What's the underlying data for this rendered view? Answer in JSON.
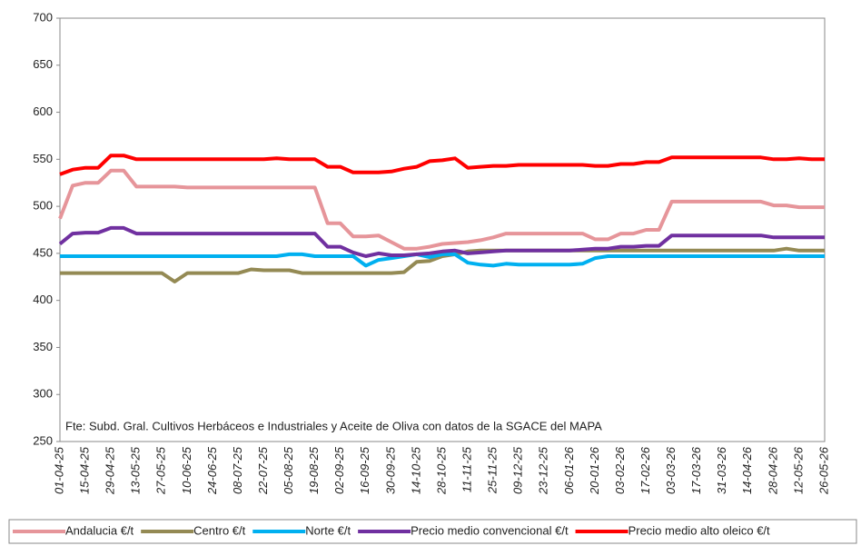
{
  "chart_data": {
    "type": "line",
    "categories": [
      "01-04-25",
      null,
      "15-04-25",
      null,
      "29-04-25",
      null,
      "13-05-25",
      null,
      "27-05-25",
      null,
      "10-06-25",
      null,
      "24-06-25",
      null,
      "08-07-25",
      null,
      "22-07-25",
      null,
      "05-08-25",
      null,
      "19-08-25",
      null,
      "02-09-25",
      null,
      "16-09-25",
      null,
      "30-09-25",
      null,
      "14-10-25",
      null,
      "28-10-25",
      null,
      "11-11-25",
      null,
      "25-11-25",
      null,
      "09-12-25",
      null,
      "23-12-25",
      null,
      "06-01-26",
      null,
      "20-01-26",
      null,
      "03-02-26",
      null,
      "17-02-26",
      null,
      "03-03-26",
      null,
      "17-03-26",
      null,
      "31-03-26",
      null,
      "14-04-26",
      null,
      "28-04-26",
      null,
      "12-05-26",
      null,
      "26-05-26"
    ],
    "series": [
      {
        "name": "Andalucia €/t",
        "color": "#e6959a",
        "values": [
          487,
          522,
          525,
          525,
          538,
          538,
          521,
          521,
          521,
          521,
          520,
          520,
          520,
          520,
          520,
          520,
          520,
          520,
          520,
          520,
          520,
          482,
          482,
          468,
          468,
          469,
          462,
          455,
          455,
          457,
          460,
          461,
          462,
          464,
          467,
          471,
          471,
          471,
          471,
          471,
          471,
          471,
          465,
          465,
          471,
          471,
          475,
          475,
          505,
          505,
          505,
          505,
          505,
          505,
          505,
          505,
          501,
          501,
          499,
          499,
          499
        ]
      },
      {
        "name": "Centro €/t",
        "color": "#948a54",
        "values": [
          429,
          429,
          429,
          429,
          429,
          429,
          429,
          429,
          429,
          420,
          429,
          429,
          429,
          429,
          429,
          433,
          432,
          432,
          432,
          429,
          429,
          429,
          429,
          429,
          429,
          429,
          429,
          430,
          441,
          442,
          447,
          449,
          452,
          453,
          453,
          453,
          453,
          453,
          453,
          453,
          453,
          453,
          453,
          453,
          453,
          453,
          453,
          453,
          453,
          453,
          453,
          453,
          453,
          453,
          453,
          453,
          453,
          455,
          453,
          453,
          453
        ]
      },
      {
        "name": "Norte €/t",
        "color": "#00b0f0",
        "values": [
          447,
          447,
          447,
          447,
          447,
          447,
          447,
          447,
          447,
          447,
          447,
          447,
          447,
          447,
          447,
          447,
          447,
          447,
          449,
          449,
          447,
          447,
          447,
          447,
          437,
          443,
          445,
          447,
          449,
          446,
          449,
          449,
          440,
          438,
          437,
          439,
          438,
          438,
          438,
          438,
          438,
          439,
          445,
          447,
          447,
          447,
          447,
          447,
          447,
          447,
          447,
          447,
          447,
          447,
          447,
          447,
          447,
          447,
          447,
          447,
          447
        ]
      },
      {
        "name": "Precio medio convencional €/t",
        "color": "#7030a0",
        "values": [
          460,
          471,
          472,
          472,
          477,
          477,
          471,
          471,
          471,
          471,
          471,
          471,
          471,
          471,
          471,
          471,
          471,
          471,
          471,
          471,
          471,
          457,
          457,
          451,
          447,
          450,
          448,
          448,
          449,
          450,
          452,
          453,
          450,
          451,
          452,
          453,
          453,
          453,
          453,
          453,
          453,
          454,
          455,
          455,
          457,
          457,
          458,
          458,
          469,
          469,
          469,
          469,
          469,
          469,
          469,
          469,
          467,
          467,
          467,
          467,
          467
        ]
      },
      {
        "name": "Precio medio alto oleico €/t",
        "color": "#ff0000",
        "values": [
          534,
          539,
          541,
          541,
          554,
          554,
          550,
          550,
          550,
          550,
          550,
          550,
          550,
          550,
          550,
          550,
          550,
          551,
          550,
          550,
          550,
          542,
          542,
          536,
          536,
          536,
          537,
          540,
          542,
          548,
          549,
          551,
          541,
          542,
          543,
          543,
          544,
          544,
          544,
          544,
          544,
          544,
          543,
          543,
          545,
          545,
          547,
          547,
          552,
          552,
          552,
          552,
          552,
          552,
          552,
          552,
          550,
          550,
          551,
          550,
          550
        ]
      }
    ],
    "ylim": [
      250,
      700
    ],
    "yticks": [
      250,
      300,
      350,
      400,
      450,
      500,
      550,
      600,
      650,
      700
    ],
    "annotation": "Fte: Subd. Gral. Cultivos Herbáceos e Industriales y Aceite de Oliva con datos de la SGACE del MAPA",
    "legend": "bottom",
    "grid": false
  }
}
